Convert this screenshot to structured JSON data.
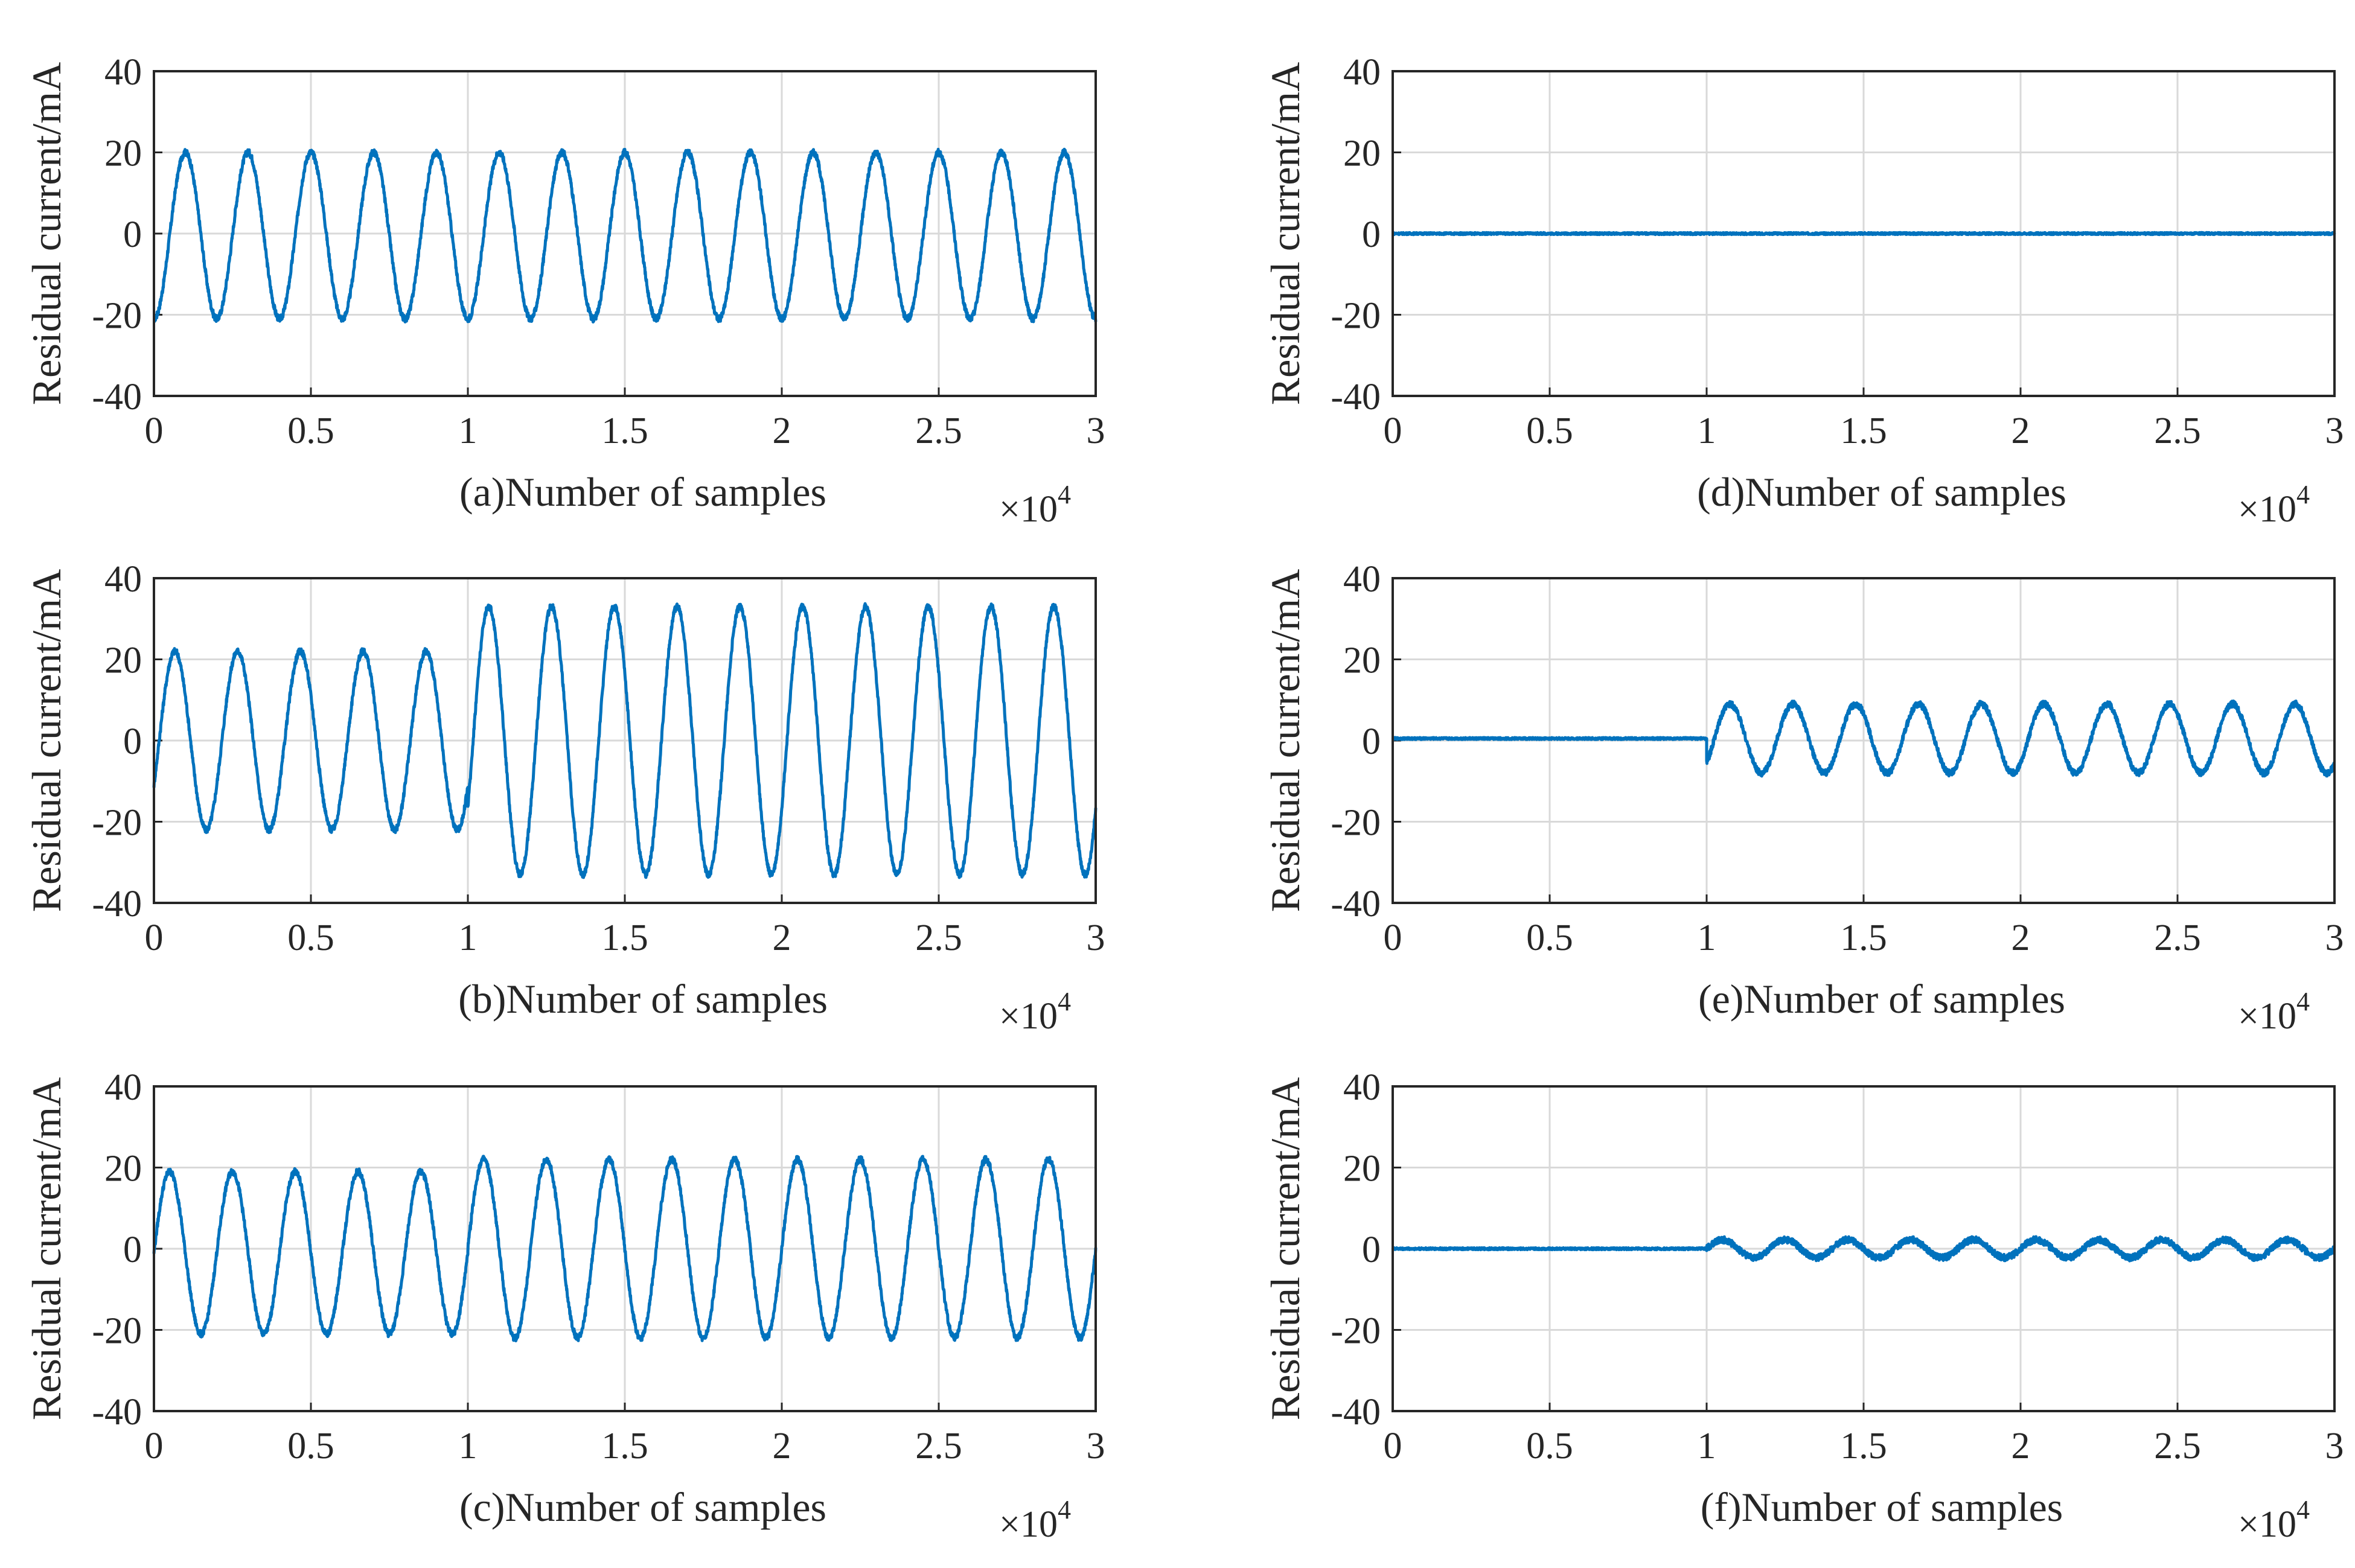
{
  "chart_data": [
    {
      "type": "line",
      "panel": "a",
      "xlabel": "(a)Number of samples",
      "ylabel": "Residual current/mA",
      "xlim": [
        0,
        3
      ],
      "ylim": [
        -40,
        40
      ],
      "xticks": [
        "0",
        "0.5",
        "1",
        "1.5",
        "2",
        "2.5",
        "3"
      ],
      "yticks": [
        "40",
        "20",
        "0",
        "-20",
        "-40"
      ],
      "x_multiplier": {
        "base": "×10",
        "exponent": "4"
      },
      "grid": true,
      "series": [
        {
          "name": "residual current",
          "segments": [
            {
              "x_start": 0,
              "x_end": 3,
              "amplitude": 20.5,
              "cycles_per_unit": 5,
              "phase_deg": -90,
              "offset": -0.5
            }
          ]
        }
      ]
    },
    {
      "type": "line",
      "panel": "b",
      "xlabel": "(b)Number of samples",
      "ylabel": "Residual current/mA",
      "xlim": [
        0,
        3
      ],
      "ylim": [
        -40,
        40
      ],
      "xticks": [
        "0",
        "0.5",
        "1",
        "1.5",
        "2",
        "2.5",
        "3"
      ],
      "yticks": [
        "40",
        "20",
        "0",
        "-20",
        "-40"
      ],
      "x_multiplier": {
        "base": "×10",
        "exponent": "4"
      },
      "grid": true,
      "series": [
        {
          "name": "residual current",
          "segments": [
            {
              "x_start": 0,
              "x_end": 1,
              "amplitude": 22,
              "cycles_per_unit": 5,
              "phase_deg": -30,
              "offset": 0
            },
            {
              "x_start": 1,
              "x_end": 3,
              "amplitude": 33,
              "cycles_per_unit": 5,
              "phase_deg": -30,
              "offset": 0
            }
          ]
        }
      ]
    },
    {
      "type": "line",
      "panel": "c",
      "xlabel": "(c)Number of samples",
      "ylabel": "Residual current/mA",
      "xlim": [
        0,
        3
      ],
      "ylim": [
        -40,
        40
      ],
      "xticks": [
        "0",
        "0.5",
        "1",
        "1.5",
        "2",
        "2.5",
        "3"
      ],
      "yticks": [
        "40",
        "20",
        "0",
        "-20",
        "-40"
      ],
      "x_multiplier": {
        "base": "×10",
        "exponent": "4"
      },
      "grid": true,
      "series": [
        {
          "name": "residual current",
          "segments": [
            {
              "x_start": 0,
              "x_end": 1,
              "amplitude": 20,
              "cycles_per_unit": 5,
              "phase_deg": 0,
              "offset": -1
            },
            {
              "x_start": 1,
              "x_end": 3,
              "amplitude": 22,
              "cycles_per_unit": 5,
              "phase_deg": 0,
              "offset": 0
            }
          ]
        }
      ]
    },
    {
      "type": "line",
      "panel": "d",
      "xlabel": "(d)Number of samples",
      "ylabel": "Residual current/mA",
      "xlim": [
        0,
        3
      ],
      "ylim": [
        -40,
        40
      ],
      "xticks": [
        "0",
        "0.5",
        "1",
        "1.5",
        "2",
        "2.5",
        "3"
      ],
      "yticks": [
        "40",
        "20",
        "0",
        "-20",
        "-40"
      ],
      "x_multiplier": {
        "base": "×10",
        "exponent": "4"
      },
      "grid": true,
      "series": [
        {
          "name": "residual current",
          "segments": [
            {
              "x_start": 0,
              "x_end": 3,
              "amplitude": 0,
              "cycles_per_unit": 5,
              "phase_deg": 0,
              "offset": 0
            }
          ]
        }
      ]
    },
    {
      "type": "line",
      "panel": "e",
      "xlabel": "(e)Number of samples",
      "ylabel": "Residual current/mA",
      "xlim": [
        0,
        3
      ],
      "ylim": [
        -40,
        40
      ],
      "xticks": [
        "0",
        "0.5",
        "1",
        "1.5",
        "2",
        "2.5",
        "3"
      ],
      "yticks": [
        "40",
        "20",
        "0",
        "-20",
        "-40"
      ],
      "x_multiplier": {
        "base": "×10",
        "exponent": "4"
      },
      "grid": true,
      "series": [
        {
          "name": "residual current",
          "segments": [
            {
              "x_start": 0,
              "x_end": 1,
              "amplitude": 0,
              "cycles_per_unit": 5,
              "phase_deg": 0,
              "offset": 0.5
            },
            {
              "x_start": 1,
              "x_end": 3,
              "amplitude": 8.5,
              "cycles_per_unit": 5,
              "phase_deg": -45,
              "offset": 0.5
            }
          ]
        }
      ]
    },
    {
      "type": "line",
      "panel": "f",
      "xlabel": "(f)Number of samples",
      "ylabel": "Residual current/mA",
      "xlim": [
        0,
        3
      ],
      "ylim": [
        -40,
        40
      ],
      "xticks": [
        "0",
        "0.5",
        "1",
        "1.5",
        "2",
        "2.5",
        "3"
      ],
      "yticks": [
        "40",
        "20",
        "0",
        "-20",
        "-40"
      ],
      "x_multiplier": {
        "base": "×10",
        "exponent": "4"
      },
      "grid": true,
      "series": [
        {
          "name": "residual current",
          "segments": [
            {
              "x_start": 0,
              "x_end": 1,
              "amplitude": 0,
              "cycles_per_unit": 5,
              "phase_deg": 0,
              "offset": 0
            },
            {
              "x_start": 1,
              "x_end": 3,
              "amplitude": 2.2,
              "cycles_per_unit": 5,
              "phase_deg": 0,
              "offset": 0
            }
          ]
        }
      ]
    }
  ]
}
